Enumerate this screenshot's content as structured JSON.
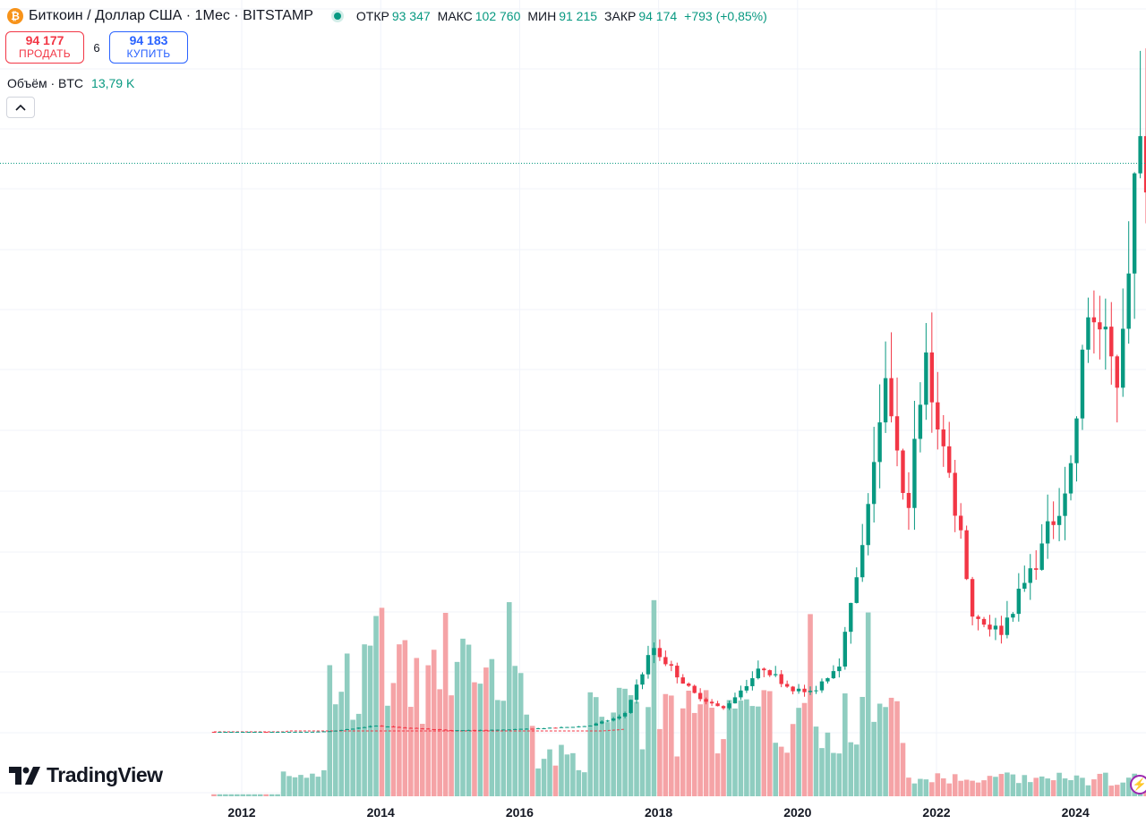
{
  "header": {
    "coin_icon": "bitcoin-icon",
    "symbol_title": "Биткоин / Доллар США · 1Мес · BITSTAMP",
    "ohlc": {
      "open_label": "ОТКР",
      "open_value": "93 347",
      "high_label": "МАКС",
      "high_value": "102 760",
      "low_label": "МИН",
      "low_value": "91 215",
      "close_label": "ЗАКР",
      "close_value": "94 174",
      "change": "+793 (+0,85%)"
    }
  },
  "trade": {
    "sell_price": "94 177",
    "sell_label": "ПРОДАТЬ",
    "spread": "6",
    "buy_price": "94 183",
    "buy_label": "КУПИТЬ"
  },
  "volume_indicator": {
    "label": "Объём · BTC",
    "value": "13,79 K"
  },
  "collapse_icon": "chevron-up-icon",
  "brand": {
    "name": "TradingView",
    "icon": "tradingview-logo-icon"
  },
  "colors": {
    "up": "#089981",
    "down": "#f23645",
    "vol_up": "#8fcdc0",
    "vol_down": "#f5a3a6",
    "grid": "#f0f3fa"
  },
  "chart_data": {
    "type": "candlestick",
    "interval": "1M",
    "x_tick_labels": [
      "2012",
      "2014",
      "2016",
      "2018",
      "2020",
      "2022",
      "2024"
    ],
    "last_price": 94174,
    "grid": true,
    "price_axis_visible": false,
    "price_candles": [
      {
        "year": 2012.0,
        "high": 1200,
        "low": 1200
      },
      {
        "year": 2017.0,
        "high": 3000,
        "low": 3000
      },
      {
        "year": 2017.5,
        "high": 3200,
        "low": 2400
      },
      {
        "year": 2017.92,
        "high": 19700,
        "low": 9000
      },
      {
        "year": 2018.92,
        "high": 3200,
        "low": 3100
      },
      {
        "year": 2019.5,
        "high": 13800,
        "low": 10000
      },
      {
        "year": 2020.2,
        "high": 9000,
        "low": 3800
      },
      {
        "year": 2021.3,
        "high": 64800,
        "low": 47000
      },
      {
        "year": 2021.55,
        "high": 42000,
        "low": 29000
      },
      {
        "year": 2021.85,
        "high": 69000,
        "low": 57000
      },
      {
        "year": 2022.5,
        "high": 20000,
        "low": 17500
      },
      {
        "year": 2022.95,
        "high": 16500,
        "low": 15500
      },
      {
        "year": 2024.15,
        "high": 73800,
        "low": 61000
      },
      {
        "year": 2024.6,
        "high": 58000,
        "low": 49000
      },
      {
        "year": 2024.95,
        "high": 108000,
        "low": 92000
      },
      {
        "year": 2025.05,
        "high": 102760,
        "low": 91215
      }
    ],
    "volume_peaks": [
      {
        "year": 2013.9,
        "color": "up"
      },
      {
        "year": 2014.0,
        "color": "down"
      },
      {
        "year": 2014.95,
        "color": "down"
      },
      {
        "year": 2015.85,
        "color": "up"
      },
      {
        "year": 2017.95,
        "color": "up"
      },
      {
        "year": 2020.2,
        "color": "down"
      },
      {
        "year": 2021.05,
        "color": "up"
      }
    ]
  }
}
